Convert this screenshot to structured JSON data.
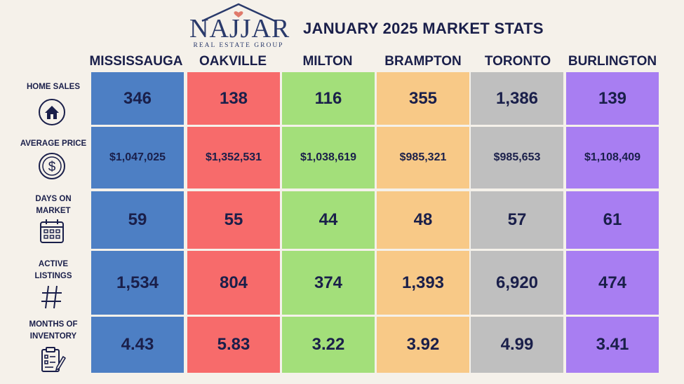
{
  "logo": {
    "name": "NAJJAR",
    "subtitle": "REAL ESTATE GROUP"
  },
  "title": "JANUARY 2025 MARKET STATS",
  "colors": {
    "background": "#f5f1ea",
    "text": "#1a1f4a",
    "mississauga": "#4d7fc4",
    "oakville": "#f76b6b",
    "milton": "#a3df7a",
    "brampton": "#f8c987",
    "toronto": "#bfbfbf",
    "burlington": "#a87ef2"
  },
  "cities": [
    "MISSISSAUGA",
    "OAKVILLE",
    "MILTON",
    "BRAMPTON",
    "TORONTO",
    "BURLINGTON"
  ],
  "metrics": [
    {
      "label_lines": [
        "HOME SALES"
      ],
      "icon": "house-icon",
      "values": [
        "346",
        "138",
        "116",
        "355",
        "1,386",
        "139"
      ]
    },
    {
      "label_lines": [
        "AVERAGE PRICE"
      ],
      "icon": "dollar-icon",
      "values": [
        "$1,047,025",
        "$1,352,531",
        "$1,038,619",
        "$985,321",
        "$985,653",
        "$1,108,409"
      ]
    },
    {
      "label_lines": [
        "DAYS ON",
        "MARKET"
      ],
      "icon": "calendar-icon",
      "values": [
        "59",
        "55",
        "44",
        "48",
        "57",
        "61"
      ]
    },
    {
      "label_lines": [
        "ACTIVE",
        "LISTINGS"
      ],
      "icon": "hashtag-icon",
      "values": [
        "1,534",
        "804",
        "374",
        "1,393",
        "6,920",
        "474"
      ]
    },
    {
      "label_lines": [
        "MONTHS OF",
        "INVENTORY"
      ],
      "icon": "clipboard-icon",
      "values": [
        "4.43",
        "5.83",
        "3.22",
        "3.92",
        "4.99",
        "3.41"
      ]
    }
  ]
}
